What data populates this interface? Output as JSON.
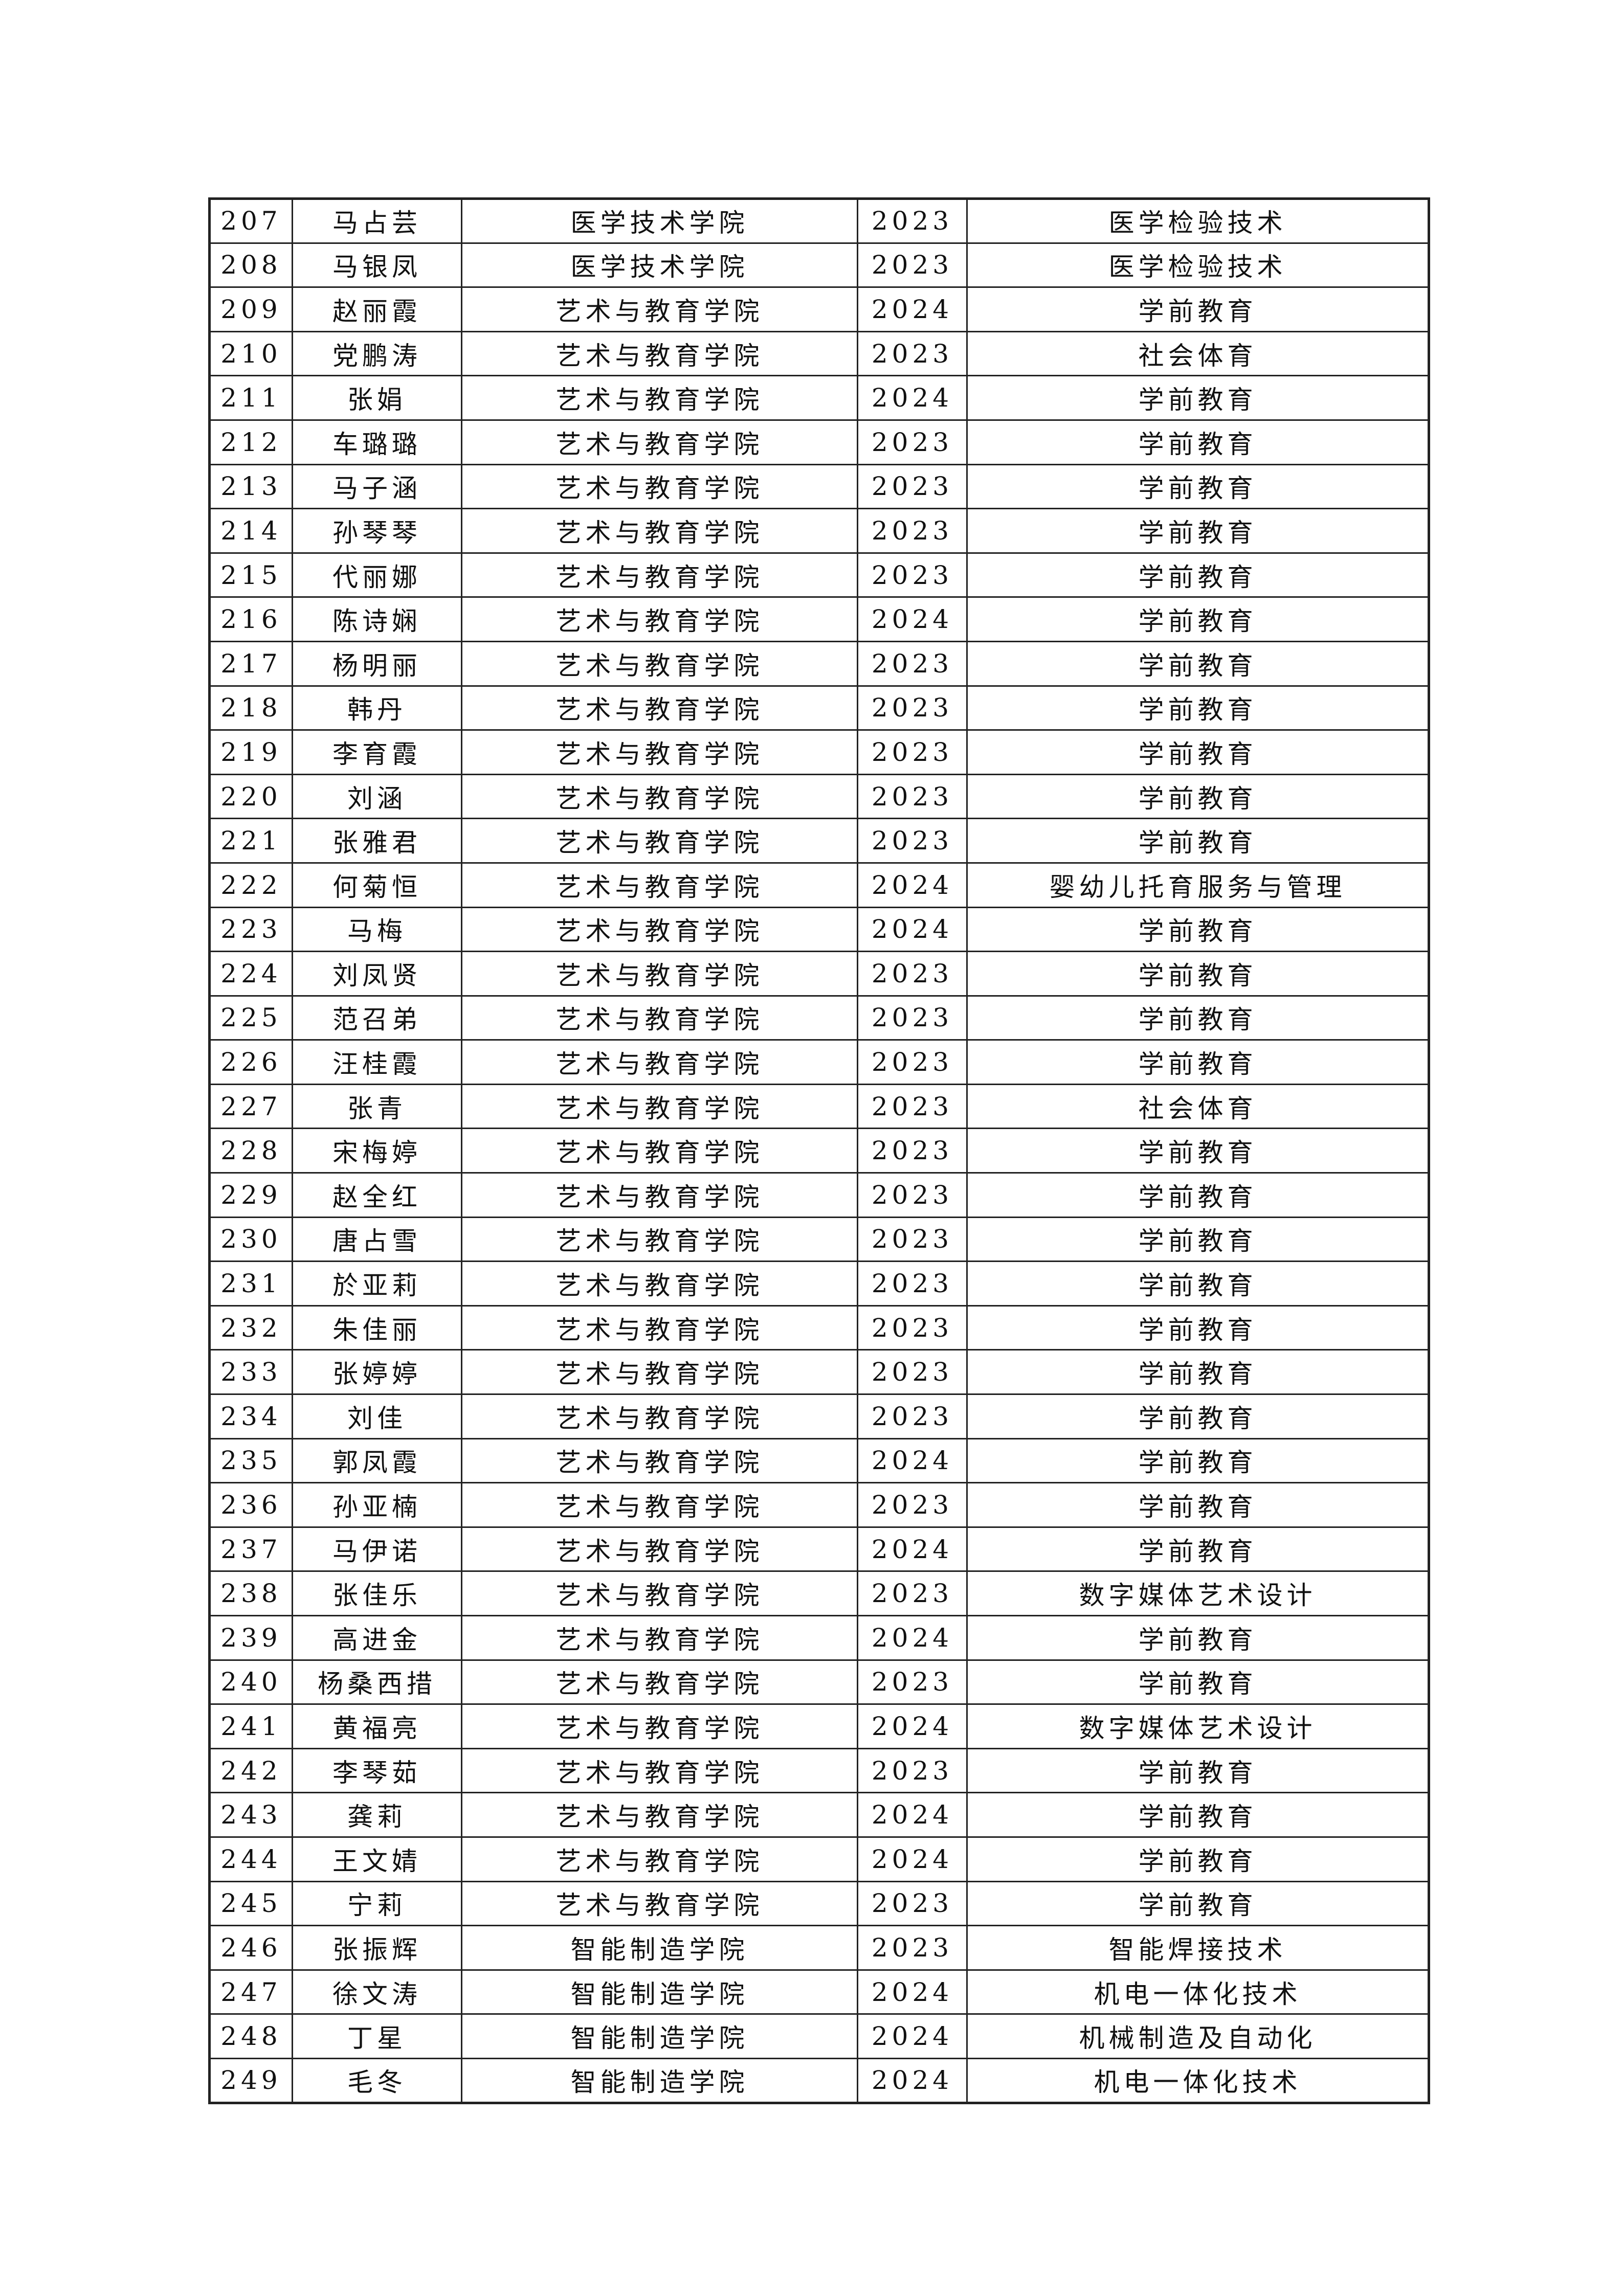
{
  "rows": [
    [
      "207",
      "马占芸",
      "医学技术学院",
      "2023",
      "医学检验技术"
    ],
    [
      "208",
      "马银凤",
      "医学技术学院",
      "2023",
      "医学检验技术"
    ],
    [
      "209",
      "赵丽霞",
      "艺术与教育学院",
      "2024",
      "学前教育"
    ],
    [
      "210",
      "党鹏涛",
      "艺术与教育学院",
      "2023",
      "社会体育"
    ],
    [
      "211",
      "张娟",
      "艺术与教育学院",
      "2024",
      "学前教育"
    ],
    [
      "212",
      "车璐璐",
      "艺术与教育学院",
      "2023",
      "学前教育"
    ],
    [
      "213",
      "马子涵",
      "艺术与教育学院",
      "2023",
      "学前教育"
    ],
    [
      "214",
      "孙琴琴",
      "艺术与教育学院",
      "2023",
      "学前教育"
    ],
    [
      "215",
      "代丽娜",
      "艺术与教育学院",
      "2023",
      "学前教育"
    ],
    [
      "216",
      "陈诗娴",
      "艺术与教育学院",
      "2024",
      "学前教育"
    ],
    [
      "217",
      "杨明丽",
      "艺术与教育学院",
      "2023",
      "学前教育"
    ],
    [
      "218",
      "韩丹",
      "艺术与教育学院",
      "2023",
      "学前教育"
    ],
    [
      "219",
      "李育霞",
      "艺术与教育学院",
      "2023",
      "学前教育"
    ],
    [
      "220",
      "刘涵",
      "艺术与教育学院",
      "2023",
      "学前教育"
    ],
    [
      "221",
      "张雅君",
      "艺术与教育学院",
      "2023",
      "学前教育"
    ],
    [
      "222",
      "何菊恒",
      "艺术与教育学院",
      "2024",
      "婴幼儿托育服务与管理"
    ],
    [
      "223",
      "马梅",
      "艺术与教育学院",
      "2024",
      "学前教育"
    ],
    [
      "224",
      "刘凤贤",
      "艺术与教育学院",
      "2023",
      "学前教育"
    ],
    [
      "225",
      "范召弟",
      "艺术与教育学院",
      "2023",
      "学前教育"
    ],
    [
      "226",
      "汪桂霞",
      "艺术与教育学院",
      "2023",
      "学前教育"
    ],
    [
      "227",
      "张青",
      "艺术与教育学院",
      "2023",
      "社会体育"
    ],
    [
      "228",
      "宋梅婷",
      "艺术与教育学院",
      "2023",
      "学前教育"
    ],
    [
      "229",
      "赵全红",
      "艺术与教育学院",
      "2023",
      "学前教育"
    ],
    [
      "230",
      "唐占雪",
      "艺术与教育学院",
      "2023",
      "学前教育"
    ],
    [
      "231",
      "於亚莉",
      "艺术与教育学院",
      "2023",
      "学前教育"
    ],
    [
      "232",
      "朱佳丽",
      "艺术与教育学院",
      "2023",
      "学前教育"
    ],
    [
      "233",
      "张婷婷",
      "艺术与教育学院",
      "2023",
      "学前教育"
    ],
    [
      "234",
      "刘佳",
      "艺术与教育学院",
      "2023",
      "学前教育"
    ],
    [
      "235",
      "郭凤霞",
      "艺术与教育学院",
      "2024",
      "学前教育"
    ],
    [
      "236",
      "孙亚楠",
      "艺术与教育学院",
      "2023",
      "学前教育"
    ],
    [
      "237",
      "马伊诺",
      "艺术与教育学院",
      "2024",
      "学前教育"
    ],
    [
      "238",
      "张佳乐",
      "艺术与教育学院",
      "2023",
      "数字媒体艺术设计"
    ],
    [
      "239",
      "高进金",
      "艺术与教育学院",
      "2024",
      "学前教育"
    ],
    [
      "240",
      "杨桑西措",
      "艺术与教育学院",
      "2023",
      "学前教育"
    ],
    [
      "241",
      "黄福亮",
      "艺术与教育学院",
      "2024",
      "数字媒体艺术设计"
    ],
    [
      "242",
      "李琴茹",
      "艺术与教育学院",
      "2023",
      "学前教育"
    ],
    [
      "243",
      "龚莉",
      "艺术与教育学院",
      "2024",
      "学前教育"
    ],
    [
      "244",
      "王文婧",
      "艺术与教育学院",
      "2024",
      "学前教育"
    ],
    [
      "245",
      "宁莉",
      "艺术与教育学院",
      "2023",
      "学前教育"
    ],
    [
      "246",
      "张振辉",
      "智能制造学院",
      "2023",
      "智能焊接技术"
    ],
    [
      "247",
      "徐文涛",
      "智能制造学院",
      "2024",
      "机电一体化技术"
    ],
    [
      "248",
      "丁星",
      "智能制造学院",
      "2024",
      "机械制造及自动化"
    ],
    [
      "249",
      "毛冬",
      "智能制造学院",
      "2024",
      "机电一体化技术"
    ]
  ]
}
